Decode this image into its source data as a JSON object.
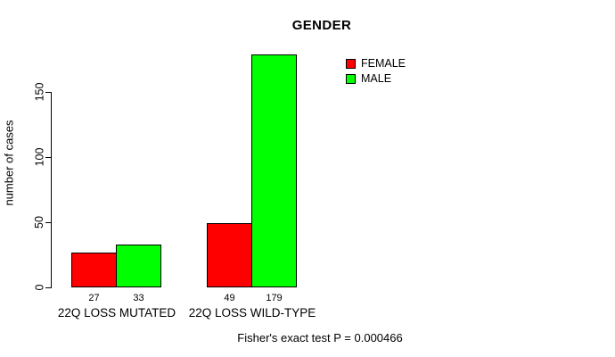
{
  "title": "GENDER",
  "footnote": "Fisher's exact test P = 0.000466",
  "colors": {
    "female": "#ff0000",
    "male": "#00ff00",
    "axis": "#000000",
    "background": "#ffffff"
  },
  "chart_data": {
    "type": "bar",
    "categories": [
      "22Q LOSS MUTATED",
      "22Q LOSS WILD-TYPE"
    ],
    "series": [
      {
        "name": "FEMALE",
        "color": "#ff0000",
        "values": [
          27,
          49
        ]
      },
      {
        "name": "MALE",
        "color": "#00ff00",
        "values": [
          33,
          179
        ]
      }
    ],
    "bar_value_labels": [
      [
        "27",
        "33"
      ],
      [
        "49",
        "179"
      ]
    ],
    "title": "GENDER",
    "xlabel": "",
    "ylabel": "number of cases",
    "yticks": [
      0,
      50,
      100,
      150
    ],
    "ylim": [
      0,
      150
    ],
    "grid": false,
    "legend_position": "top-right"
  }
}
